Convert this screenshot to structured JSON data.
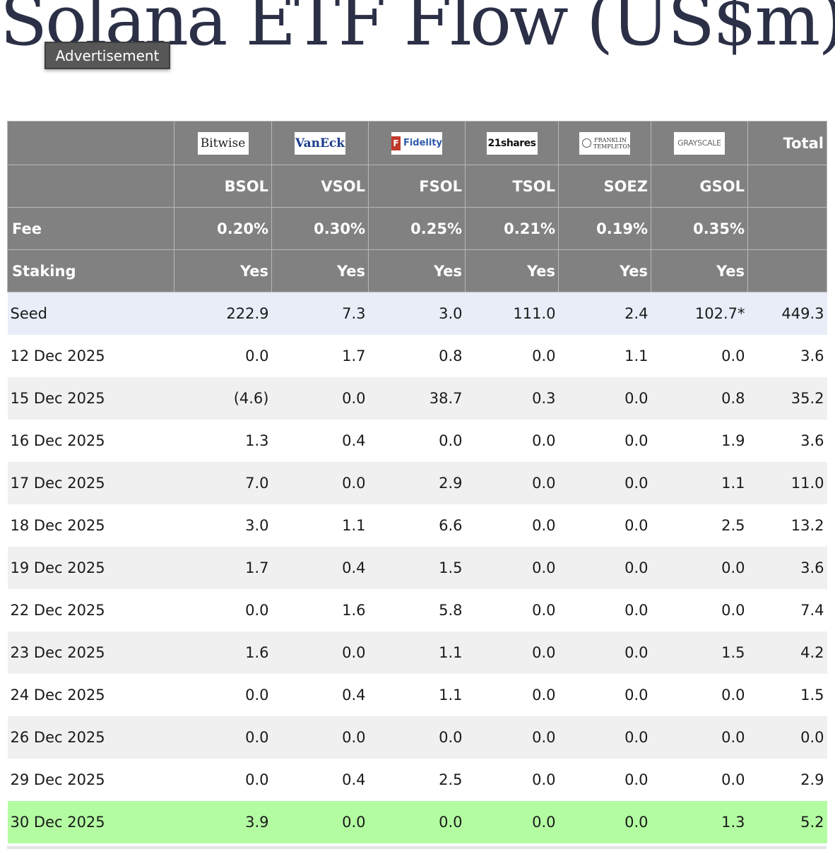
{
  "title": "Solana ETF Flow (US$m)",
  "advertisement_label": "Advertisement",
  "table": {
    "issuers": [
      {
        "logo_text": "Bitwise",
        "ticker": "BSOL",
        "fee": "0.20%",
        "staking": "Yes"
      },
      {
        "logo_text": "VanEck",
        "ticker": "VSOL",
        "fee": "0.30%",
        "staking": "Yes"
      },
      {
        "logo_text": "Fidelity",
        "ticker": "FSOL",
        "fee": "0.25%",
        "staking": "Yes"
      },
      {
        "logo_text": "21shares",
        "ticker": "TSOL",
        "fee": "0.21%",
        "staking": "Yes"
      },
      {
        "logo_text": "FRANKLIN TEMPLETON",
        "ticker": "SOEZ",
        "fee": "0.19%",
        "staking": "Yes"
      },
      {
        "logo_text": "GRAYSCALE",
        "ticker": "GSOL",
        "fee": "0.35%",
        "staking": "Yes"
      }
    ],
    "total_label": "Total",
    "fee_label": "Fee",
    "staking_label": "Staking",
    "rows": [
      {
        "date": "Seed",
        "values": [
          "222.9",
          "7.3",
          "3.0",
          "111.0",
          "2.4",
          "102.7*"
        ],
        "total": "449.3"
      },
      {
        "date": "12 Dec 2025",
        "values": [
          "0.0",
          "1.7",
          "0.8",
          "0.0",
          "1.1",
          "0.0"
        ],
        "total": "3.6"
      },
      {
        "date": "15 Dec 2025",
        "values": [
          "(4.6)",
          "0.0",
          "38.7",
          "0.3",
          "0.0",
          "0.8"
        ],
        "total": "35.2"
      },
      {
        "date": "16 Dec 2025",
        "values": [
          "1.3",
          "0.4",
          "0.0",
          "0.0",
          "0.0",
          "1.9"
        ],
        "total": "3.6"
      },
      {
        "date": "17 Dec 2025",
        "values": [
          "7.0",
          "0.0",
          "2.9",
          "0.0",
          "0.0",
          "1.1"
        ],
        "total": "11.0"
      },
      {
        "date": "18 Dec 2025",
        "values": [
          "3.0",
          "1.1",
          "6.6",
          "0.0",
          "0.0",
          "2.5"
        ],
        "total": "13.2"
      },
      {
        "date": "19 Dec 2025",
        "values": [
          "1.7",
          "0.4",
          "1.5",
          "0.0",
          "0.0",
          "0.0"
        ],
        "total": "3.6"
      },
      {
        "date": "22 Dec 2025",
        "values": [
          "0.0",
          "1.6",
          "5.8",
          "0.0",
          "0.0",
          "0.0"
        ],
        "total": "7.4"
      },
      {
        "date": "23 Dec 2025",
        "values": [
          "1.6",
          "0.0",
          "1.1",
          "0.0",
          "0.0",
          "1.5"
        ],
        "total": "4.2"
      },
      {
        "date": "24 Dec 2025",
        "values": [
          "0.0",
          "0.4",
          "1.1",
          "0.0",
          "0.0",
          "0.0"
        ],
        "total": "1.5"
      },
      {
        "date": "26 Dec 2025",
        "values": [
          "0.0",
          "0.0",
          "0.0",
          "0.0",
          "0.0",
          "0.0"
        ],
        "total": "0.0"
      },
      {
        "date": "29 Dec 2025",
        "values": [
          "0.0",
          "0.4",
          "2.5",
          "0.0",
          "0.0",
          "0.0"
        ],
        "total": "2.9"
      },
      {
        "date": "30 Dec 2025",
        "values": [
          "3.9",
          "0.0",
          "0.0",
          "0.0",
          "0.0",
          "1.3"
        ],
        "total": "5.2"
      }
    ]
  },
  "colors": {
    "header_bg": "#818181",
    "seed_row_bg": "#e8edf7",
    "alt_row_bg": "#f0f0f0",
    "latest_row_bg": "#b3fca1",
    "negative_text": "#d23b30",
    "title_text": "#2b3047"
  }
}
